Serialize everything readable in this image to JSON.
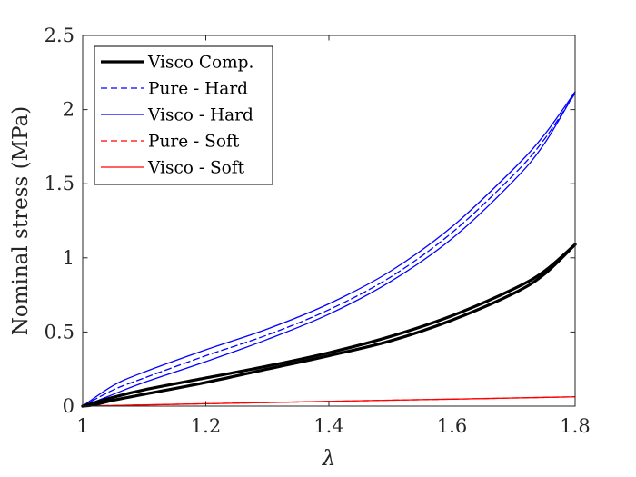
{
  "chart_data": {
    "type": "line",
    "title": "",
    "xlabel": "λ",
    "ylabel": "Nominal stress (MPa)",
    "xlim": [
      1,
      1.8
    ],
    "ylim": [
      0,
      2.5
    ],
    "xticks": [
      1,
      1.2,
      1.4,
      1.6,
      1.8
    ],
    "xtick_labels": [
      "1",
      "1.2",
      "1.4",
      "1.6",
      "1.8"
    ],
    "yticks": [
      0,
      0.5,
      1,
      1.5,
      2,
      2.5
    ],
    "ytick_labels": [
      "0",
      "0.5",
      "1",
      "1.5",
      "2",
      "2.5"
    ],
    "grid": false,
    "legend_position": "top-left",
    "series": [
      {
        "name": "Visco Comp.",
        "color": "#000000",
        "dash": "solid",
        "width": "thick",
        "loading": [
          [
            1.0,
            0
          ],
          [
            1.05,
            0.06
          ],
          [
            1.1,
            0.11
          ],
          [
            1.2,
            0.19
          ],
          [
            1.3,
            0.27
          ],
          [
            1.4,
            0.36
          ],
          [
            1.5,
            0.47
          ],
          [
            1.6,
            0.61
          ],
          [
            1.7,
            0.79
          ],
          [
            1.75,
            0.91
          ],
          [
            1.8,
            1.09
          ]
        ],
        "unloading": [
          [
            1.8,
            1.09
          ],
          [
            1.75,
            0.89
          ],
          [
            1.7,
            0.76
          ],
          [
            1.6,
            0.58
          ],
          [
            1.5,
            0.44
          ],
          [
            1.4,
            0.34
          ],
          [
            1.3,
            0.25
          ],
          [
            1.2,
            0.16
          ],
          [
            1.1,
            0.08
          ],
          [
            1.05,
            0.04
          ],
          [
            1.02,
            0.01
          ],
          [
            1.0,
            0
          ]
        ]
      },
      {
        "name": "Pure - Hard",
        "color": "#0000ff",
        "dash": "dashed",
        "width": "thin",
        "values": [
          [
            1.0,
            0
          ],
          [
            1.05,
            0.11
          ],
          [
            1.1,
            0.19
          ],
          [
            1.2,
            0.34
          ],
          [
            1.3,
            0.48
          ],
          [
            1.4,
            0.65
          ],
          [
            1.5,
            0.87
          ],
          [
            1.6,
            1.17
          ],
          [
            1.7,
            1.56
          ],
          [
            1.75,
            1.8
          ],
          [
            1.8,
            2.11
          ]
        ]
      },
      {
        "name": "Visco - Hard",
        "color": "#0000ff",
        "dash": "solid",
        "width": "thin",
        "loading": [
          [
            1.0,
            0
          ],
          [
            1.05,
            0.14
          ],
          [
            1.1,
            0.23
          ],
          [
            1.2,
            0.38
          ],
          [
            1.3,
            0.52
          ],
          [
            1.4,
            0.69
          ],
          [
            1.5,
            0.91
          ],
          [
            1.6,
            1.21
          ],
          [
            1.7,
            1.6
          ],
          [
            1.75,
            1.83
          ],
          [
            1.8,
            2.12
          ]
        ],
        "unloading": [
          [
            1.8,
            2.12
          ],
          [
            1.75,
            1.77
          ],
          [
            1.7,
            1.52
          ],
          [
            1.6,
            1.13
          ],
          [
            1.5,
            0.84
          ],
          [
            1.4,
            0.62
          ],
          [
            1.3,
            0.45
          ],
          [
            1.2,
            0.3
          ],
          [
            1.1,
            0.16
          ],
          [
            1.05,
            0.08
          ],
          [
            1.02,
            0.03
          ],
          [
            1.0,
            0
          ]
        ]
      },
      {
        "name": "Pure - Soft",
        "color": "#ff0000",
        "dash": "dashed",
        "width": "thin",
        "values": [
          [
            1.0,
            0
          ],
          [
            1.1,
            0.008
          ],
          [
            1.2,
            0.016
          ],
          [
            1.3,
            0.024
          ],
          [
            1.4,
            0.032
          ],
          [
            1.5,
            0.04
          ],
          [
            1.6,
            0.047
          ],
          [
            1.7,
            0.055
          ],
          [
            1.8,
            0.063
          ]
        ]
      },
      {
        "name": "Visco - Soft",
        "color": "#ff0000",
        "dash": "solid",
        "width": "thin",
        "values": [
          [
            1.0,
            0
          ],
          [
            1.1,
            0.008
          ],
          [
            1.2,
            0.016
          ],
          [
            1.3,
            0.024
          ],
          [
            1.4,
            0.032
          ],
          [
            1.5,
            0.04
          ],
          [
            1.6,
            0.047
          ],
          [
            1.7,
            0.055
          ],
          [
            1.8,
            0.063
          ]
        ]
      }
    ]
  }
}
